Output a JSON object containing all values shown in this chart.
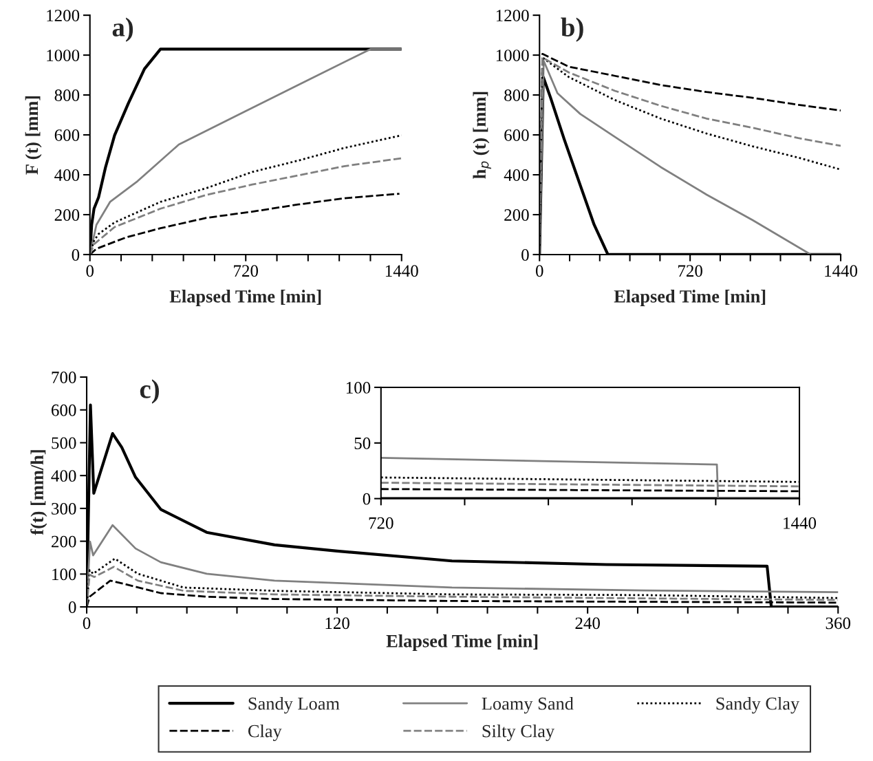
{
  "chart_data": [
    {
      "type": "line",
      "title": "a)",
      "xlabel": "Elapsed Time [min]",
      "ylabel": "F (t) [mm]",
      "xlim": [
        0,
        1440
      ],
      "ylim": [
        0,
        1200
      ],
      "xticks": [
        0,
        {
          "value": 144,
          "label": null
        },
        {
          "value": 288,
          "label": null
        },
        {
          "value": 432,
          "label": null
        },
        {
          "value": 576,
          "label": null
        },
        720,
        {
          "value": 864,
          "label": null
        },
        {
          "value": 1008,
          "label": null
        },
        {
          "value": 1152,
          "label": null
        },
        {
          "value": 1296,
          "label": null
        },
        1440
      ],
      "yticks": [
        0,
        200,
        400,
        600,
        800,
        1000,
        1200
      ],
      "grid": false,
      "legend": "bottom",
      "series": [
        {
          "name": "Sandy Loam",
          "color": "#000000",
          "line_style": "solid",
          "x": [
            0,
            8,
            19,
            40,
            72,
            114,
            178,
            252,
            326,
            1440
          ],
          "values": [
            0,
            149,
            230,
            287,
            437,
            598,
            759,
            931,
            1030,
            1030
          ]
        },
        {
          "name": "Loamy Sand",
          "color": "#808080",
          "line_style": "solid",
          "x": [
            0,
            30,
            93,
            220,
            411,
            718,
            1015,
            1296,
            1440
          ],
          "values": [
            0,
            149,
            264,
            368,
            552,
            718,
            879,
            1030,
            1030
          ]
        },
        {
          "name": "Sandy Clay",
          "color": "#000000",
          "line_style": "dotted",
          "x": [
            0,
            19,
            40,
            114,
            326,
            538,
            750,
            962,
            1174,
            1440
          ],
          "values": [
            0,
            69,
            103,
            161,
            264,
            333,
            414,
            471,
            534,
            598
          ]
        },
        {
          "name": "Clay",
          "color": "#000000",
          "line_style": "dashed",
          "x": [
            0,
            30,
            167,
            326,
            538,
            750,
            962,
            1174,
            1430
          ],
          "values": [
            0,
            29,
            86,
            132,
            184,
            215,
            251,
            282,
            305
          ]
        },
        {
          "name": "Silty Clay",
          "color": "#808080",
          "line_style": "dashed",
          "x": [
            0,
            19,
            114,
            326,
            538,
            750,
            962,
            1174,
            1440
          ],
          "values": [
            0,
            52,
            138,
            230,
            299,
            351,
            397,
            443,
            483
          ]
        }
      ]
    },
    {
      "type": "line",
      "title": "b)",
      "xlabel": "Elapsed Time [min]",
      "ylabel": "h$_{p}$ (t) [mm]",
      "xlim": [
        0,
        1440
      ],
      "ylim": [
        0,
        1200
      ],
      "xticks": [
        0,
        {
          "value": 144,
          "label": null
        },
        {
          "value": 288,
          "label": null
        },
        {
          "value": 432,
          "label": null
        },
        {
          "value": 576,
          "label": null
        },
        720,
        {
          "value": 864,
          "label": null
        },
        {
          "value": 1008,
          "label": null
        },
        {
          "value": 1152,
          "label": null
        },
        {
          "value": 1296,
          "label": null
        },
        1440
      ],
      "yticks": [
        0,
        200,
        400,
        600,
        800,
        1000,
        1200
      ],
      "grid": false,
      "series": [
        {
          "color": "#000000",
          "line_style": "solid",
          "x": [
            0,
            18,
            53,
            118,
            195,
            261,
            327,
            1440
          ],
          "values": [
            0,
            890,
            786,
            578,
            347,
            150,
            0,
            0
          ]
        },
        {
          "color": "#808080",
          "line_style": "solid",
          "x": [
            0,
            20,
            86,
            195,
            360,
            579,
            798,
            1018,
            1297,
            1440
          ],
          "values": [
            0,
            971,
            809,
            705,
            590,
            439,
            301,
            173,
            0,
            0
          ]
        },
        {
          "color": "#000000",
          "line_style": "dotted",
          "x": [
            0,
            14,
            140,
            360,
            579,
            798,
            1018,
            1237,
            1434
          ],
          "values": [
            0,
            988,
            890,
            775,
            682,
            607,
            543,
            486,
            428
          ]
        },
        {
          "color": "#000000",
          "line_style": "dashed",
          "x": [
            0,
            14,
            140,
            360,
            579,
            798,
            1018,
            1237,
            1440
          ],
          "values": [
            0,
            1006,
            942,
            896,
            850,
            815,
            786,
            751,
            722
          ]
        },
        {
          "color": "#808080",
          "line_style": "dashed",
          "x": [
            0,
            14,
            140,
            360,
            579,
            798,
            1018,
            1237,
            1440
          ],
          "values": [
            0,
            988,
            913,
            821,
            746,
            682,
            636,
            584,
            545
          ]
        }
      ]
    },
    {
      "type": "line",
      "title": "c)",
      "xlabel": "Elapsed Time [min]",
      "ylabel": "f(t) [mm/h]",
      "xlim": [
        0,
        360
      ],
      "ylim": [
        0,
        700
      ],
      "xticks": [
        0,
        {
          "value": 24,
          "label": null
        },
        {
          "value": 48,
          "label": null
        },
        {
          "value": 72,
          "label": null
        },
        {
          "value": 96,
          "label": null
        },
        120,
        {
          "value": 144,
          "label": null
        },
        {
          "value": 168,
          "label": null
        },
        {
          "value": 192,
          "label": null
        },
        {
          "value": 216,
          "label": null
        },
        240,
        {
          "value": 264,
          "label": null
        },
        {
          "value": 288,
          "label": null
        },
        {
          "value": 312,
          "label": null
        },
        {
          "value": 336,
          "label": null
        },
        360
      ],
      "yticks": [
        0,
        100,
        200,
        300,
        400,
        500,
        600,
        700
      ],
      "grid": false,
      "series": [
        {
          "color": "#000000",
          "line_style": "solid",
          "x": [
            0,
            1.8,
            3.4,
            12.4,
            16.8,
            23.4,
            35.5,
            57.5,
            90,
            120,
            175,
            249,
            326,
            328,
            360
          ],
          "values": [
            0,
            615,
            346,
            528,
            486,
            395,
            297,
            227,
            189,
            170,
            140,
            129,
            124,
            0,
            0
          ]
        },
        {
          "color": "#808080",
          "line_style": "solid",
          "x": [
            0,
            1.6,
            3.1,
            12.4,
            23.4,
            35.5,
            57.5,
            90,
            175,
            267,
            360
          ],
          "values": [
            0,
            199,
            157,
            249,
            178,
            136,
            101,
            80,
            59,
            50,
            45
          ]
        },
        {
          "color": "#000000",
          "line_style": "dotted",
          "x": [
            0,
            1.4,
            3.1,
            13.5,
            24.5,
            46.5,
            90,
            175,
            267,
            360
          ],
          "values": [
            0,
            112,
            101,
            147,
            101,
            59,
            49,
            38,
            36,
            27
          ]
        },
        {
          "color": "#000000",
          "line_style": "dashed",
          "x": [
            0,
            1.4,
            11.3,
            17.9,
            35.5,
            57.5,
            90,
            175,
            360
          ],
          "values": [
            0,
            31,
            80,
            70,
            42,
            31,
            24,
            18,
            13
          ]
        },
        {
          "color": "#808080",
          "line_style": "dashed",
          "x": [
            0,
            1.4,
            3.6,
            13,
            24.5,
            46.5,
            90,
            175,
            360
          ],
          "values": [
            0,
            98,
            91,
            122,
            80,
            49,
            38,
            31,
            21
          ]
        }
      ]
    },
    {
      "type": "line",
      "xlim": [
        720,
        1440
      ],
      "ylim": [
        0,
        100
      ],
      "xticks": [
        720,
        {
          "value": 864,
          "label": null
        },
        {
          "value": 1008,
          "label": null
        },
        {
          "value": 1152,
          "label": null
        },
        {
          "value": 1296,
          "label": null
        },
        1440
      ],
      "yticks": [
        0,
        50,
        100
      ],
      "grid": false,
      "series": [
        {
          "color": "#000000",
          "line_style": "solid",
          "x": [
            720,
            1440
          ],
          "values": [
            0,
            0
          ]
        },
        {
          "color": "#808080",
          "line_style": "solid",
          "x": [
            720,
            1298,
            1300,
            1440
          ],
          "values": [
            36.6,
            30.6,
            0,
            0
          ]
        },
        {
          "color": "#000000",
          "line_style": "dotted",
          "x": [
            720,
            1440
          ],
          "values": [
            19,
            15
          ]
        },
        {
          "color": "#000000",
          "line_style": "dashed",
          "x": [
            720,
            1440
          ],
          "values": [
            8.6,
            6.6
          ]
        },
        {
          "color": "#808080",
          "line_style": "dashed",
          "x": [
            720,
            1440
          ],
          "values": [
            14.3,
            11
          ]
        }
      ]
    }
  ]
}
